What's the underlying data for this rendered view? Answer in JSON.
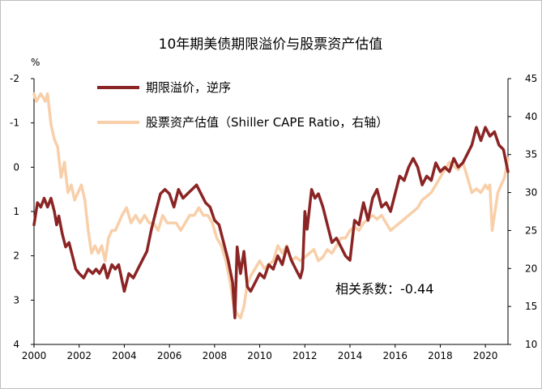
{
  "chart_data": {
    "type": "line",
    "title": "10年期美债期限溢价与股票资产估值",
    "left_unit": "%",
    "left_axis": {
      "ylim": [
        4,
        -2
      ],
      "ticks": [
        -2,
        -1,
        0,
        1,
        2,
        3,
        4
      ],
      "inverted": true
    },
    "right_axis": {
      "ylim": [
        10,
        45
      ],
      "ticks": [
        10,
        15,
        20,
        25,
        30,
        35,
        40,
        45
      ]
    },
    "x_axis": {
      "xlim": [
        2000,
        2021
      ],
      "ticks": [
        2000,
        2002,
        2004,
        2006,
        2008,
        2010,
        2012,
        2014,
        2016,
        2018,
        2020
      ]
    },
    "annotation": "相关系数：-0.44",
    "series": [
      {
        "name": "期限溢价，逆序",
        "axis": "left",
        "color": "#8b2424",
        "x": [
          2000.0,
          2000.15,
          2000.3,
          2000.45,
          2000.6,
          2000.75,
          2000.9,
          2001.0,
          2001.1,
          2001.25,
          2001.4,
          2001.55,
          2001.7,
          2001.85,
          2002.0,
          2002.2,
          2002.4,
          2002.6,
          2002.75,
          2002.9,
          2003.1,
          2003.25,
          2003.45,
          2003.6,
          2003.75,
          2004.0,
          2004.2,
          2004.4,
          2004.6,
          2004.8,
          2005.0,
          2005.2,
          2005.4,
          2005.6,
          2005.8,
          2006.0,
          2006.2,
          2006.4,
          2006.6,
          2006.8,
          2007.0,
          2007.2,
          2007.4,
          2007.6,
          2007.8,
          2008.0,
          2008.2,
          2008.4,
          2008.6,
          2008.8,
          2008.9,
          2009.0,
          2009.15,
          2009.3,
          2009.45,
          2009.6,
          2009.8,
          2010.0,
          2010.2,
          2010.4,
          2010.6,
          2010.8,
          2011.0,
          2011.2,
          2011.4,
          2011.6,
          2011.8,
          2011.9,
          2012.0,
          2012.1,
          2012.3,
          2012.45,
          2012.6,
          2012.8,
          2013.0,
          2013.2,
          2013.4,
          2013.6,
          2013.8,
          2014.0,
          2014.2,
          2014.4,
          2014.6,
          2014.8,
          2015.0,
          2015.2,
          2015.4,
          2015.6,
          2015.8,
          2016.0,
          2016.2,
          2016.4,
          2016.6,
          2016.8,
          2017.0,
          2017.2,
          2017.4,
          2017.6,
          2017.8,
          2018.0,
          2018.2,
          2018.4,
          2018.6,
          2018.8,
          2019.0,
          2019.2,
          2019.4,
          2019.6,
          2019.8,
          2020.0,
          2020.2,
          2020.4,
          2020.6,
          2020.8,
          2021.0
        ],
        "values": [
          1.3,
          0.8,
          0.9,
          0.7,
          0.9,
          0.7,
          1.0,
          1.3,
          1.1,
          1.5,
          1.8,
          1.7,
          2.0,
          2.3,
          2.4,
          2.5,
          2.3,
          2.4,
          2.3,
          2.4,
          2.2,
          2.5,
          2.2,
          2.3,
          2.2,
          2.8,
          2.4,
          2.5,
          2.3,
          2.1,
          1.9,
          1.4,
          1.0,
          0.6,
          0.5,
          0.6,
          0.9,
          0.5,
          0.7,
          0.6,
          0.5,
          0.4,
          0.6,
          0.8,
          0.9,
          1.2,
          1.3,
          1.7,
          2.1,
          2.6,
          3.4,
          1.8,
          2.4,
          1.9,
          2.7,
          2.8,
          2.6,
          2.4,
          2.5,
          2.2,
          2.3,
          2.0,
          2.2,
          1.8,
          2.1,
          2.3,
          2.5,
          2.3,
          1.0,
          1.4,
          0.5,
          0.7,
          0.6,
          0.9,
          1.3,
          1.7,
          1.6,
          1.8,
          2.0,
          2.1,
          1.2,
          1.3,
          0.8,
          1.2,
          0.7,
          0.5,
          0.9,
          0.8,
          1.0,
          0.6,
          0.2,
          0.3,
          0.0,
          -0.2,
          0.0,
          0.4,
          0.2,
          0.3,
          -0.1,
          0.1,
          0.0,
          0.1,
          -0.2,
          0.0,
          -0.1,
          -0.3,
          -0.5,
          -0.9,
          -0.6,
          -0.9,
          -0.7,
          -0.8,
          -0.5,
          -0.4,
          0.1
        ]
      },
      {
        "name": "股票资产估值（Shiller CAPE Ratio，右轴）",
        "axis": "right",
        "color": "#f8cfa9",
        "x": [
          2000.0,
          2000.1,
          2000.3,
          2000.5,
          2000.6,
          2000.75,
          2000.9,
          2001.05,
          2001.2,
          2001.35,
          2001.5,
          2001.65,
          2001.8,
          2001.95,
          2002.1,
          2002.25,
          2002.4,
          2002.55,
          2002.7,
          2002.85,
          2003.0,
          2003.15,
          2003.3,
          2003.45,
          2003.6,
          2003.75,
          2003.9,
          2004.1,
          2004.3,
          2004.5,
          2004.7,
          2004.9,
          2005.1,
          2005.3,
          2005.5,
          2005.7,
          2005.9,
          2006.1,
          2006.3,
          2006.5,
          2006.7,
          2006.9,
          2007.1,
          2007.3,
          2007.5,
          2007.7,
          2007.9,
          2008.1,
          2008.3,
          2008.5,
          2008.7,
          2008.85,
          2009.0,
          2009.15,
          2009.3,
          2009.45,
          2009.6,
          2009.8,
          2010.0,
          2010.2,
          2010.4,
          2010.6,
          2010.8,
          2011.0,
          2011.2,
          2011.4,
          2011.6,
          2011.8,
          2012.0,
          2012.2,
          2012.4,
          2012.6,
          2012.8,
          2013.0,
          2013.2,
          2013.4,
          2013.6,
          2013.8,
          2014.0,
          2014.2,
          2014.4,
          2014.6,
          2014.8,
          2015.0,
          2015.2,
          2015.4,
          2015.6,
          2015.8,
          2016.0,
          2016.2,
          2016.4,
          2016.6,
          2016.8,
          2017.0,
          2017.2,
          2017.4,
          2017.6,
          2017.8,
          2018.0,
          2018.2,
          2018.4,
          2018.6,
          2018.8,
          2019.0,
          2019.2,
          2019.4,
          2019.6,
          2019.8,
          2020.0,
          2020.1,
          2020.2,
          2020.3,
          2020.4,
          2020.55,
          2020.7,
          2020.85,
          2021.0
        ],
        "values": [
          43.0,
          42.0,
          43.0,
          42.0,
          43.0,
          39.0,
          37.0,
          36.0,
          32.0,
          34.0,
          30.0,
          31.0,
          29.0,
          30.0,
          31.0,
          29.0,
          25.0,
          22.0,
          23.0,
          22.0,
          23.0,
          21.0,
          24.0,
          25.0,
          25.0,
          26.0,
          27.0,
          28.0,
          26.0,
          27.0,
          26.0,
          27.0,
          26.0,
          26.0,
          25.0,
          27.0,
          26.0,
          26.0,
          26.0,
          25.0,
          26.0,
          27.0,
          27.0,
          28.0,
          27.0,
          27.0,
          26.0,
          24.0,
          23.0,
          21.0,
          18.0,
          15.0,
          14.0,
          13.5,
          15.0,
          18.0,
          19.0,
          20.0,
          21.0,
          20.0,
          20.5,
          21.0,
          23.0,
          22.0,
          23.0,
          21.0,
          21.5,
          21.0,
          21.5,
          22.0,
          22.5,
          21.0,
          21.5,
          22.5,
          22.0,
          23.0,
          24.0,
          24.0,
          25.0,
          25.5,
          25.0,
          26.0,
          26.5,
          27.0,
          26.5,
          27.0,
          26.0,
          25.0,
          25.5,
          26.0,
          26.5,
          27.0,
          27.5,
          28.0,
          29.0,
          29.5,
          30.0,
          31.0,
          32.0,
          33.0,
          34.0,
          33.5,
          33.0,
          34.0,
          32.0,
          30.0,
          30.5,
          30.0,
          31.0,
          30.5,
          31.0,
          25.0,
          27.0,
          30.0,
          31.0,
          32.0,
          34.5
        ]
      }
    ]
  }
}
